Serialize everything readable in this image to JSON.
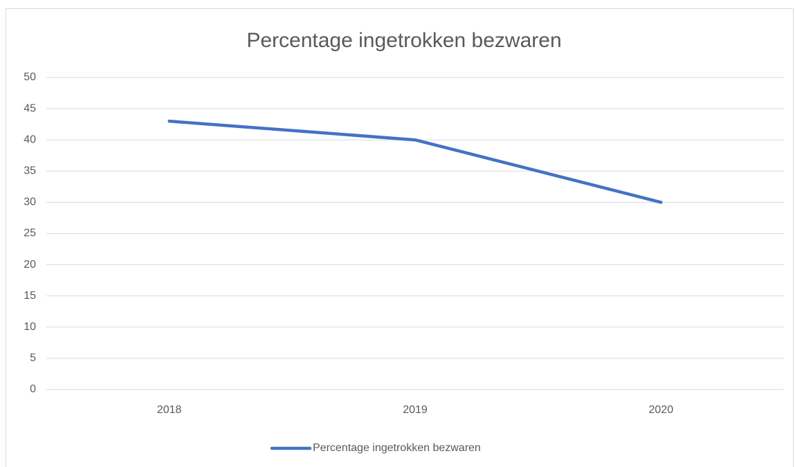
{
  "chart_data": {
    "type": "line",
    "title": "Percentage ingetrokken bezwaren",
    "categories": [
      "2018",
      "2019",
      "2020"
    ],
    "series": [
      {
        "name": "Percentage ingetrokken bezwaren",
        "color": "#4472c4",
        "values": [
          43,
          40,
          30
        ]
      }
    ],
    "ylim": [
      0,
      50
    ],
    "yticks": [
      0,
      5,
      10,
      15,
      20,
      25,
      30,
      35,
      40,
      45,
      50
    ],
    "grid": true,
    "legend": "bottom"
  }
}
